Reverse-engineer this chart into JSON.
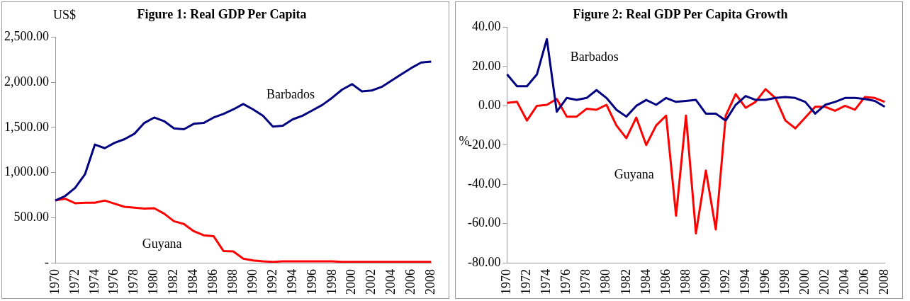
{
  "chart_data": [
    {
      "type": "line",
      "title": "Figure 1: Real GDP Per Capita",
      "ylabel": "US$",
      "categories": [
        "1970",
        null,
        "1972",
        null,
        "1974",
        null,
        "1976",
        null,
        "1978",
        null,
        "1980",
        null,
        "1982",
        null,
        "1984",
        null,
        "1986",
        null,
        "1988",
        null,
        "1990",
        null,
        "1992",
        null,
        "1994",
        null,
        "1996",
        null,
        "1998",
        null,
        "2000",
        null,
        "2002",
        null,
        "2004",
        null,
        "2006",
        null,
        "2008"
      ],
      "series": [
        {
          "name": "Barbados",
          "color": "#000080",
          "values": [
            690,
            740,
            830,
            980,
            1310,
            1270,
            1330,
            1370,
            1430,
            1550,
            1610,
            1570,
            1490,
            1480,
            1540,
            1550,
            1610,
            1650,
            1700,
            1760,
            1700,
            1630,
            1510,
            1520,
            1590,
            1630,
            1690,
            1750,
            1830,
            1920,
            1980,
            1900,
            1910,
            1950,
            2020,
            2090,
            2160,
            2220,
            2230
          ]
        },
        {
          "name": "Guyana",
          "color": "#ff0000",
          "values": [
            690,
            710,
            660,
            665,
            665,
            690,
            655,
            620,
            610,
            600,
            605,
            545,
            460,
            430,
            350,
            305,
            295,
            130,
            125,
            45,
            25,
            15,
            10,
            15,
            15,
            15,
            15,
            15,
            15,
            10,
            10,
            10,
            10,
            10,
            10,
            10,
            10,
            10,
            10
          ]
        }
      ],
      "ylim": [
        0,
        2500
      ],
      "yticks": [
        {
          "value": 0,
          "label": "-"
        },
        {
          "value": 500,
          "label": "500.00"
        },
        {
          "value": 1000,
          "label": "1,000.00"
        },
        {
          "value": 1500,
          "label": "1,500.00"
        },
        {
          "value": 2000,
          "label": "2,000.00"
        },
        {
          "value": 2500,
          "label": "2,500.00"
        }
      ],
      "grid": false,
      "legend": false,
      "marker": "none",
      "line_style": "solid"
    },
    {
      "type": "line",
      "title": "Figure 2: Real GDP Per Capita Growth",
      "ylabel": "%",
      "categories": [
        "1970",
        null,
        "1972",
        null,
        "1974",
        null,
        "1976",
        null,
        "1978",
        null,
        "1980",
        null,
        "1982",
        null,
        "1984",
        null,
        "1986",
        null,
        "1988",
        null,
        "1990",
        null,
        "1992",
        null,
        "1994",
        null,
        "1996",
        null,
        "1998",
        null,
        "2000",
        null,
        "2002",
        null,
        "2004",
        null,
        "2006",
        null,
        "2008"
      ],
      "series": [
        {
          "name": "Barbados",
          "color": "#000080",
          "values": [
            16,
            10,
            10,
            16,
            34,
            -3,
            4,
            3,
            4,
            8,
            4,
            -2,
            -5.5,
            0,
            3,
            0.5,
            4,
            2,
            2.5,
            3,
            -4,
            -4,
            -7.5,
            0.5,
            5,
            3,
            3,
            4,
            4.5,
            4,
            2,
            -4,
            0.5,
            2,
            4,
            4,
            3.5,
            2.5,
            -0.5
          ]
        },
        {
          "name": "Guyana",
          "color": "#ff0000",
          "values": [
            1.5,
            2,
            -7.5,
            0,
            0.5,
            3.5,
            -5.5,
            -5.5,
            -1.5,
            -2,
            0.5,
            -10,
            -16.5,
            -6,
            -20,
            -10,
            -5,
            -56,
            -5,
            -65,
            -33,
            -63,
            -5,
            6,
            -1,
            2,
            8.5,
            4,
            -7.5,
            -11.5,
            -6,
            -0.5,
            -0.5,
            -2.5,
            0,
            -2,
            4.5,
            4,
            2
          ]
        }
      ],
      "ylim": [
        -80,
        40
      ],
      "yticks": [
        {
          "value": -80,
          "label": "-80.00"
        },
        {
          "value": -60,
          "label": "-60.00"
        },
        {
          "value": -40,
          "label": "-40.00"
        },
        {
          "value": -20,
          "label": "-20.00"
        },
        {
          "value": 0,
          "label": "0.00"
        },
        {
          "value": 20,
          "label": "20.00"
        },
        {
          "value": 40,
          "label": "40.00"
        }
      ],
      "grid": false,
      "legend": false,
      "marker": "none",
      "line_style": "solid"
    }
  ]
}
